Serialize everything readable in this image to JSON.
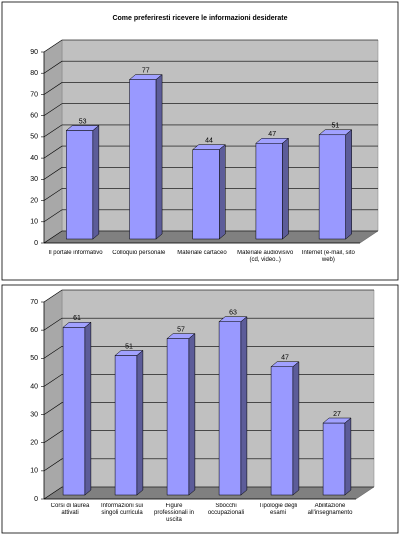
{
  "chart_data": [
    {
      "type": "bar3d",
      "title": "Come preferiresti ricevere le informazioni desiderate",
      "categories": [
        "Il portale informativo",
        "Colloquio personale",
        "Materiale cartaceo",
        "Materiale audiovisivo (cd, video..)",
        "Internet (e-mail, sito web)"
      ],
      "values": [
        53,
        77,
        44,
        47,
        51
      ],
      "color": "#9999ff",
      "ylim": [
        0,
        90
      ],
      "yticks": [
        0,
        10,
        20,
        30,
        40,
        50,
        60,
        70,
        80,
        90
      ],
      "grid": true
    },
    {
      "type": "bar3d",
      "categories": [
        "Corsi di laurea attivati",
        "Informazioni sui singoli curricula",
        "Figure professionali in uscita",
        "Sbocchi occupazionali",
        "Tipologie degli esami",
        "Abilitazione all'insegnamento"
      ],
      "values": [
        61,
        51,
        57,
        63,
        47,
        27
      ],
      "color": "#9999ff",
      "ylim": [
        0,
        70
      ],
      "yticks": [
        0,
        10,
        20,
        30,
        40,
        50,
        60,
        70
      ],
      "grid": true
    }
  ]
}
